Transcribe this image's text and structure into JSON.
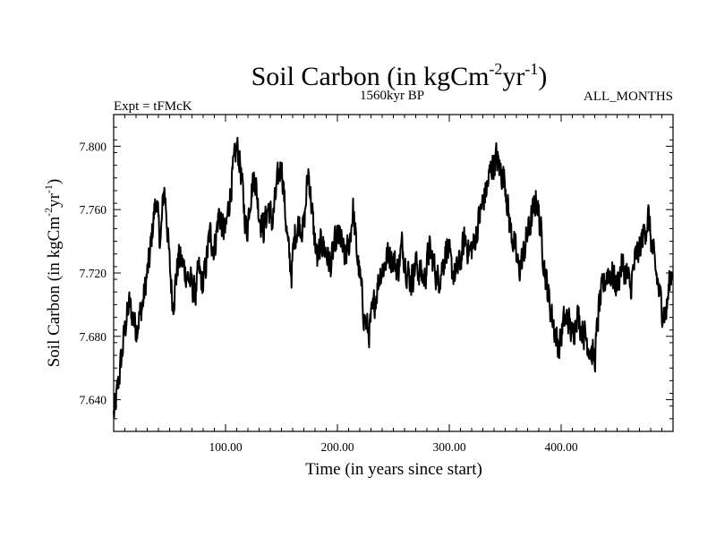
{
  "chart_data": {
    "type": "line",
    "title": {
      "main": "Soil Carbon (in kgCm",
      "sup1": "-2",
      "mid": "yr",
      "sup2": "-1",
      "end": ")"
    },
    "subtitle_left": "Expt = tFMcK",
    "subtitle_center": "1560kyr BP",
    "subtitle_right": "ALL_MONTHS",
    "xlabel": "Time (in years since start)",
    "ylabel": {
      "main": "Soil Carbon (in kgCm",
      "sup1": "-2",
      "mid": "yr",
      "sup2": "-1",
      "end": ")"
    },
    "xlim": [
      0,
      500
    ],
    "ylim": [
      7.62,
      7.82
    ],
    "x_ticks": [
      100,
      200,
      300,
      400
    ],
    "x_tick_labels": [
      "100.00",
      "200.00",
      "300.00",
      "400.00"
    ],
    "y_ticks": [
      7.64,
      7.68,
      7.72,
      7.76,
      7.8
    ],
    "y_tick_labels": [
      "7.640",
      "7.680",
      "7.720",
      "7.760",
      "7.800"
    ],
    "x_minor_step": 10,
    "y_minor_step": 0.008,
    "grid": false,
    "series": [
      {
        "name": "Soil Carbon",
        "color": "#000000",
        "anchors": [
          [
            0,
            7.63
          ],
          [
            2,
            7.638
          ],
          [
            5,
            7.655
          ],
          [
            8,
            7.672
          ],
          [
            11,
            7.69
          ],
          [
            14,
            7.7
          ],
          [
            17,
            7.693
          ],
          [
            20,
            7.685
          ],
          [
            23,
            7.693
          ],
          [
            26,
            7.7
          ],
          [
            29,
            7.715
          ],
          [
            32,
            7.728
          ],
          [
            35,
            7.75
          ],
          [
            38,
            7.768
          ],
          [
            40,
            7.75
          ],
          [
            42,
            7.74
          ],
          [
            45,
            7.775
          ],
          [
            47,
            7.76
          ],
          [
            50,
            7.725
          ],
          [
            53,
            7.7
          ],
          [
            55,
            7.712
          ],
          [
            58,
            7.73
          ],
          [
            62,
            7.725
          ],
          [
            66,
            7.718
          ],
          [
            70,
            7.712
          ],
          [
            73,
            7.705
          ],
          [
            76,
            7.722
          ],
          [
            80,
            7.712
          ],
          [
            83,
            7.728
          ],
          [
            86,
            7.745
          ],
          [
            90,
            7.735
          ],
          [
            94,
            7.758
          ],
          [
            98,
            7.748
          ],
          [
            100,
            7.745
          ],
          [
            104,
            7.77
          ],
          [
            107,
            7.785
          ],
          [
            110,
            7.8
          ],
          [
            113,
            7.79
          ],
          [
            116,
            7.765
          ],
          [
            119,
            7.745
          ],
          [
            122,
            7.768
          ],
          [
            126,
            7.782
          ],
          [
            130,
            7.758
          ],
          [
            134,
            7.748
          ],
          [
            138,
            7.762
          ],
          [
            142,
            7.752
          ],
          [
            146,
            7.775
          ],
          [
            150,
            7.79
          ],
          [
            153,
            7.762
          ],
          [
            156,
            7.735
          ],
          [
            159,
            7.72
          ],
          [
            162,
            7.745
          ],
          [
            166,
            7.752
          ],
          [
            170,
            7.748
          ],
          [
            174,
            7.785
          ],
          [
            176,
            7.77
          ],
          [
            179,
            7.745
          ],
          [
            182,
            7.728
          ],
          [
            186,
            7.74
          ],
          [
            190,
            7.733
          ],
          [
            194,
            7.725
          ],
          [
            198,
            7.738
          ],
          [
            202,
            7.744
          ],
          [
            206,
            7.73
          ],
          [
            210,
            7.735
          ],
          [
            214,
            7.76
          ],
          [
            217,
            7.735
          ],
          [
            220,
            7.718
          ],
          [
            224,
            7.692
          ],
          [
            228,
            7.682
          ],
          [
            231,
            7.693
          ],
          [
            234,
            7.705
          ],
          [
            238,
            7.72
          ],
          [
            242,
            7.725
          ],
          [
            246,
            7.733
          ],
          [
            250,
            7.728
          ],
          [
            254,
            7.722
          ],
          [
            258,
            7.738
          ],
          [
            262,
            7.722
          ],
          [
            266,
            7.715
          ],
          [
            270,
            7.726
          ],
          [
            274,
            7.72
          ],
          [
            278,
            7.716
          ],
          [
            282,
            7.735
          ],
          [
            286,
            7.726
          ],
          [
            290,
            7.715
          ],
          [
            294,
            7.725
          ],
          [
            298,
            7.738
          ],
          [
            302,
            7.722
          ],
          [
            306,
            7.718
          ],
          [
            310,
            7.728
          ],
          [
            314,
            7.742
          ],
          [
            318,
            7.733
          ],
          [
            322,
            7.738
          ],
          [
            326,
            7.752
          ],
          [
            330,
            7.765
          ],
          [
            334,
            7.775
          ],
          [
            338,
            7.788
          ],
          [
            342,
            7.792
          ],
          [
            346,
            7.785
          ],
          [
            350,
            7.778
          ],
          [
            354,
            7.75
          ],
          [
            358,
            7.738
          ],
          [
            362,
            7.722
          ],
          [
            366,
            7.73
          ],
          [
            370,
            7.745
          ],
          [
            374,
            7.755
          ],
          [
            378,
            7.768
          ],
          [
            382,
            7.745
          ],
          [
            386,
            7.718
          ],
          [
            390,
            7.7
          ],
          [
            394,
            7.685
          ],
          [
            398,
            7.672
          ],
          [
            402,
            7.688
          ],
          [
            406,
            7.692
          ],
          [
            410,
            7.68
          ],
          [
            414,
            7.695
          ],
          [
            418,
            7.686
          ],
          [
            422,
            7.68
          ],
          [
            426,
            7.672
          ],
          [
            430,
            7.665
          ],
          [
            434,
            7.7
          ],
          [
            438,
            7.712
          ],
          [
            442,
            7.722
          ],
          [
            446,
            7.718
          ],
          [
            450,
            7.712
          ],
          [
            454,
            7.725
          ],
          [
            458,
            7.72
          ],
          [
            462,
            7.71
          ],
          [
            466,
            7.728
          ],
          [
            470,
            7.735
          ],
          [
            474,
            7.745
          ],
          [
            478,
            7.755
          ],
          [
            482,
            7.732
          ],
          [
            486,
            7.715
          ],
          [
            490,
            7.698
          ],
          [
            494,
            7.695
          ],
          [
            497,
            7.715
          ],
          [
            500,
            7.725
          ]
        ]
      }
    ]
  }
}
